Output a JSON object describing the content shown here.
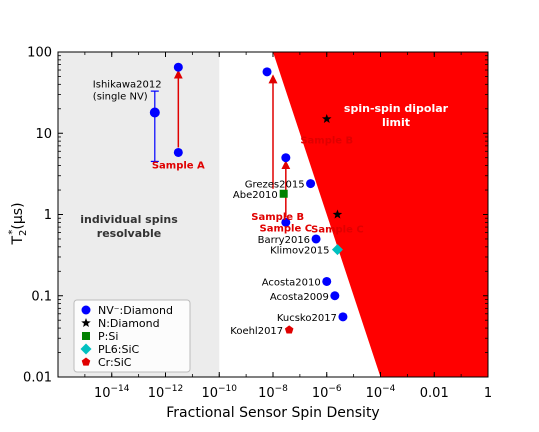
{
  "chart_data": {
    "type": "scatter",
    "xscale": "log",
    "yscale": "log",
    "xlim": [
      1e-16,
      1
    ],
    "ylim": [
      0.01,
      100
    ],
    "xlabel": "Fractional Sensor Spin Density",
    "ylabel_main": "T",
    "ylabel_sub": "2",
    "ylabel_sup": "*",
    "ylabel_unit": "(µs)",
    "xticks": [
      {
        "value": 1e-14,
        "base": "10",
        "exp": "−14"
      },
      {
        "value": 1e-12,
        "base": "10",
        "exp": "−12"
      },
      {
        "value": 1e-10,
        "base": "10",
        "exp": "−10"
      },
      {
        "value": 1e-08,
        "base": "10",
        "exp": "−8"
      },
      {
        "value": 1e-06,
        "base": "10",
        "exp": "−6"
      },
      {
        "value": 0.0001,
        "base": "10",
        "exp": "−4"
      },
      {
        "value": 0.01,
        "label": "0.01"
      },
      {
        "value": 1,
        "label": "1"
      }
    ],
    "yticks": [
      {
        "value": 0.01,
        "label": "0.01"
      },
      {
        "value": 0.1,
        "label": "0.1"
      },
      {
        "value": 1,
        "label": "1"
      },
      {
        "value": 10,
        "label": "10"
      },
      {
        "value": 100,
        "label": "100"
      }
    ],
    "regions": [
      {
        "name": "individual-spins",
        "label_lines": [
          "individual spins",
          "resolvable"
        ],
        "x_range": [
          1e-16,
          1e-10
        ],
        "color": "#ececec"
      },
      {
        "name": "dipolar-limit",
        "label_lines": [
          "spin-spin dipolar",
          "limit"
        ],
        "polygon": [
          [
            1e-08,
            100
          ],
          [
            1,
            100
          ],
          [
            1,
            0.01
          ],
          [
            0.0001,
            0.01
          ]
        ],
        "color": "#ff0000"
      }
    ],
    "series": [
      {
        "name": "NV⁻:Diamond",
        "marker": "circle",
        "color": "#0000ff"
      },
      {
        "name": "N:Diamond",
        "marker": "star",
        "color": "#000000"
      },
      {
        "name": "P:Si",
        "marker": "square",
        "color": "#008000"
      },
      {
        "name": "PL6:SiC",
        "marker": "diamond",
        "color": "#00c0c0"
      },
      {
        "name": "Cr:SiC",
        "marker": "pentagon",
        "color": "#e00000"
      }
    ],
    "points": [
      {
        "series": 0,
        "x": 4e-13,
        "y": 18,
        "yerr": [
          4.5,
          33
        ],
        "label": "Ishikawa2012\n(single NV)"
      },
      {
        "series": 0,
        "x": 3e-12,
        "y": 5.8
      },
      {
        "series": 0,
        "x": 3e-12,
        "y": 65
      },
      {
        "series": 0,
        "x": 6e-09,
        "y": 57
      },
      {
        "series": 0,
        "x": 3e-08,
        "y": 5
      },
      {
        "series": 0,
        "x": 3e-08,
        "y": 0.8
      },
      {
        "series": 0,
        "x": 2.5e-07,
        "y": 2.4,
        "label": "Grezes2015"
      },
      {
        "series": 0,
        "x": 4e-07,
        "y": 0.5,
        "label": "Barry2016"
      },
      {
        "series": 0,
        "x": 1e-06,
        "y": 0.15,
        "label": "Acosta2010"
      },
      {
        "series": 0,
        "x": 2e-06,
        "y": 0.1,
        "label": "Acosta2009"
      },
      {
        "series": 0,
        "x": 4e-06,
        "y": 0.055,
        "label": "Kucsko2017"
      },
      {
        "series": 1,
        "x": 1e-06,
        "y": 15
      },
      {
        "series": 1,
        "x": 2.5e-06,
        "y": 1
      },
      {
        "series": 2,
        "x": 2.5e-08,
        "y": 1.8,
        "label": "Abe2010"
      },
      {
        "series": 3,
        "x": 2.5e-06,
        "y": 0.37,
        "label": "Klimov2015"
      },
      {
        "series": 4,
        "x": 4e-08,
        "y": 0.038,
        "label": "Koehl2017"
      }
    ],
    "arrows": [
      {
        "x": 3e-12,
        "y_from": 5.8,
        "y_to": 65
      },
      {
        "x": 1e-08,
        "y_from": 1.8,
        "y_to": 57
      },
      {
        "x": 3e-08,
        "y_from": 0.8,
        "y_to": 5
      }
    ],
    "sample_labels": [
      {
        "text": "Sample A",
        "x": 3e-12,
        "y": 3.7
      },
      {
        "text": "Sample B",
        "x": 1e-06,
        "y": 7.5
      },
      {
        "text": "Sample B",
        "x": 1.5e-08,
        "y": 0.85
      },
      {
        "text": "Sample C",
        "x": 3e-08,
        "y": 0.62
      },
      {
        "text": "Sample C",
        "x": 2.5e-06,
        "y": 0.6
      }
    ]
  }
}
